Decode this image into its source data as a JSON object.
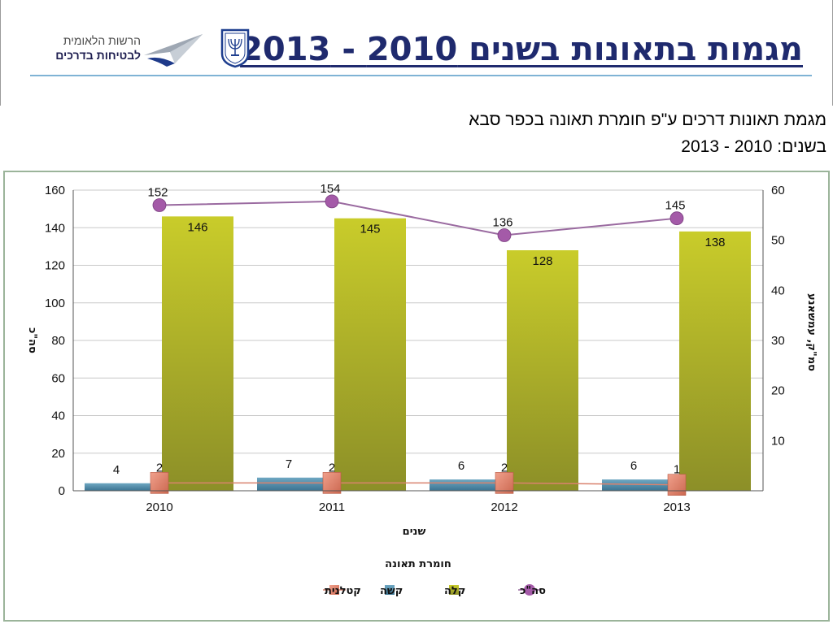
{
  "header": {
    "title": "מגמות בתאונות בשנים 2010 - 2013",
    "agency_name_line1": "הרשות הלאומית",
    "agency_name_line2": "לבטיחות בדרכים",
    "emblem_icon": "menorah-emblem-icon",
    "agency_icon": "paper-plane-checkmark-icon",
    "title_color": "#1f2a6e",
    "rule_color": "#7fb3d5"
  },
  "chart_title": {
    "line1": "מגמת תאונות דרכים ע\"פ חומרת תאונה בכפר סבא",
    "line2": "בשנים: 2010 - 2013"
  },
  "chart_data": {
    "type": "bar",
    "categories": [
      "2010",
      "2011",
      "2012",
      "2013"
    ],
    "xlabel": "שנים",
    "ylabel": "סה\"כ",
    "y2label": "סמ\"ק, עמשאנע",
    "ylim": [
      0,
      160
    ],
    "y2lim": [
      0,
      60
    ],
    "yticks": [
      0,
      20,
      40,
      60,
      80,
      100,
      120,
      140,
      160
    ],
    "y2ticks": [
      10,
      20,
      30,
      40,
      50,
      60
    ],
    "grid": true,
    "legend_title": "חומרת תאונה",
    "legend_position": "bottom",
    "series": [
      {
        "name": "קטלנית",
        "kind": "line-markers",
        "axis": "left",
        "values": [
          2,
          2,
          2,
          1
        ],
        "color": "#d9826e",
        "marker": "square"
      },
      {
        "name": "קשה",
        "kind": "bar",
        "axis": "left",
        "values": [
          4,
          7,
          6,
          6
        ],
        "color": "#4f8aa8"
      },
      {
        "name": "קלה",
        "kind": "bar",
        "axis": "left",
        "values": [
          146,
          145,
          128,
          138
        ],
        "color": "#b8bb2a"
      },
      {
        "name": "סה\"כ",
        "kind": "line",
        "axis": "left",
        "values": [
          152,
          154,
          136,
          145
        ],
        "color": "#9a6aa0",
        "marker": "circle"
      }
    ]
  }
}
